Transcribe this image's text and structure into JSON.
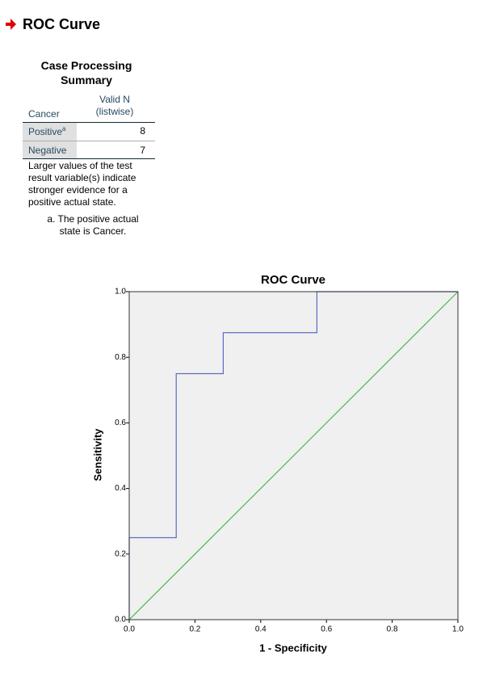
{
  "header": {
    "title": "ROC Curve"
  },
  "table": {
    "title": "Case Processing Summary",
    "row_header": "Cancer",
    "column_header": "Valid N (listwise)",
    "rows": [
      {
        "label": "Positive",
        "footnote_mark": "a",
        "value": 8
      },
      {
        "label": "Negative",
        "value": 7
      }
    ],
    "note": "Larger values of the test result variable(s) indicate stronger evidence for a positive actual state.",
    "footnote": "a. The positive actual state is Cancer."
  },
  "chart_data": {
    "type": "line",
    "title": "ROC Curve",
    "x_label": "1 - Specificity",
    "y_label": "Sensitivity",
    "xlim": [
      0,
      1
    ],
    "ylim": [
      0,
      1
    ],
    "xticks": [
      {
        "value": 0,
        "label": "0.0"
      },
      0.2,
      0.4,
      0.6,
      0.8,
      {
        "value": 1,
        "label": "1.0"
      }
    ],
    "yticks": [
      {
        "value": 0,
        "label": "0.0"
      },
      0.2,
      0.4,
      0.6,
      0.8,
      {
        "value": 1,
        "label": "1.0"
      }
    ],
    "background": "#f0f0f0",
    "series": [
      {
        "color": "#5b6ec2",
        "x": [
          0,
          0,
          0.143,
          0.143,
          0.286,
          0.286,
          0.571,
          0.571,
          1
        ],
        "values": [
          0,
          0.25,
          0.25,
          0.75,
          0.75,
          0.875,
          0.875,
          1,
          1
        ]
      },
      {
        "color": "#4cb84c",
        "x": [
          0,
          1
        ],
        "values": [
          0,
          1
        ]
      }
    ]
  }
}
